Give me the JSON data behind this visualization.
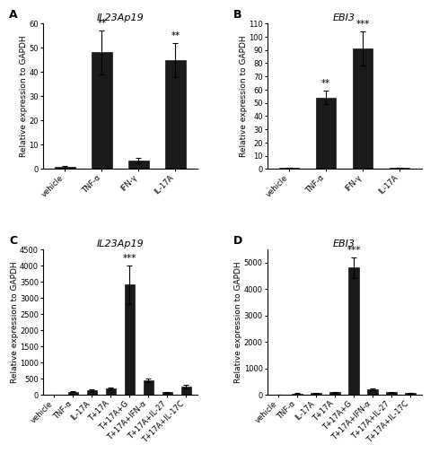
{
  "panel_A": {
    "title": "IL23Ap19",
    "label": "A",
    "categories": [
      "vehicle",
      "TNF-α",
      "IFN-γ",
      "IL-17A"
    ],
    "values": [
      1,
      48,
      3.5,
      45
    ],
    "errors": [
      0.3,
      9,
      1.2,
      7
    ],
    "sig": [
      "",
      "**",
      "",
      "**"
    ],
    "ylim": [
      0,
      60
    ],
    "yticks": [
      0,
      10,
      20,
      30,
      40,
      50,
      60
    ]
  },
  "panel_B": {
    "title": "EBI3",
    "label": "B",
    "categories": [
      "vehicle",
      "TNF-α",
      "IFN-γ",
      "IL-17A"
    ],
    "values": [
      1,
      54,
      91,
      1
    ],
    "errors": [
      0.3,
      5,
      13,
      0.3
    ],
    "sig": [
      "",
      "**",
      "***",
      ""
    ],
    "ylim": [
      0,
      110
    ],
    "yticks": [
      0,
      10,
      20,
      30,
      40,
      50,
      60,
      70,
      80,
      90,
      100,
      110
    ]
  },
  "panel_C": {
    "title": "IL23Ap19",
    "label": "C",
    "categories": [
      "vehicle",
      "TNF-α",
      "IL-17A",
      "T+17A",
      "T+17A+G",
      "T+17A+IFN-α",
      "T+17A+IL-27",
      "T+17A+IL-17C"
    ],
    "values": [
      1,
      100,
      150,
      200,
      3400,
      450,
      80,
      250
    ],
    "errors": [
      10,
      20,
      30,
      40,
      600,
      60,
      15,
      50
    ],
    "sig": [
      "",
      "",
      "",
      "",
      "***",
      "",
      "",
      ""
    ],
    "ylim": [
      0,
      4500
    ],
    "yticks": [
      0,
      500,
      1000,
      1500,
      2000,
      2500,
      3000,
      3500,
      4000,
      4500
    ]
  },
  "panel_D": {
    "title": "EBI3",
    "label": "D",
    "categories": [
      "vehicle",
      "TNF-α",
      "IL-17A",
      "T+17A",
      "T+17A+G",
      "T+17A+IFN-α",
      "T+17A+IL-27",
      "T+17A+IL-17C"
    ],
    "values": [
      1,
      50,
      60,
      100,
      4800,
      200,
      100,
      60
    ],
    "errors": [
      5,
      10,
      10,
      15,
      400,
      30,
      10,
      10
    ],
    "sig": [
      "",
      "",
      "",
      "",
      "***",
      "",
      "",
      ""
    ],
    "ylim": [
      0,
      5500
    ],
    "yticks": [
      0,
      1000,
      2000,
      3000,
      4000,
      5000
    ]
  },
  "bar_color": "#1a1a1a",
  "bar_edgecolor": "#1a1a1a",
  "background_color": "#ffffff",
  "ylabel": "Relative expression to GAPDH",
  "title_fontsize": 8,
  "label_fontsize": 9,
  "tick_fontsize": 6,
  "ylabel_fontsize": 6.5,
  "sig_fontsize": 7.5
}
